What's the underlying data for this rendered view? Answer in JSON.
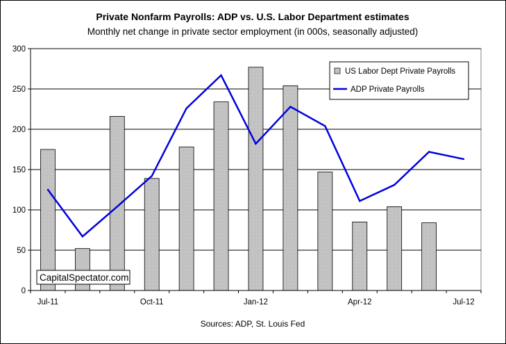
{
  "chart_data": {
    "type": "bar",
    "title": "Private Nonfarm Payrolls: ADP vs. U.S. Labor Department estimates",
    "subtitle": "Monthly net change in private sector employment (in 000s, seasonally adjusted)",
    "x_tick_labels": [
      "Jul-11",
      "Oct-11",
      "Jan-12",
      "Apr-12",
      "Jul-12"
    ],
    "ylim": [
      0,
      300
    ],
    "y_ticks": [
      0,
      50,
      100,
      150,
      200,
      250,
      300
    ],
    "grid": true,
    "legend_position": "top-right",
    "months": 13,
    "series": [
      {
        "name": "US Labor Dept Private Payrolls",
        "type": "bar",
        "values": [
          175,
          52,
          216,
          139,
          178,
          234,
          277,
          254,
          147,
          85,
          104,
          84,
          null
        ]
      },
      {
        "name": "ADP Private Payrolls",
        "type": "line",
        "color": "#0000dd",
        "values": [
          125,
          67,
          104,
          142,
          226,
          267,
          182,
          228,
          204,
          111,
          131,
          172,
          163
        ]
      }
    ],
    "source": "Sources: ADP, St. Louis Fed",
    "watermark": "CapitalSpectator.com"
  },
  "colors": {
    "bar_fill": "#c8c8c8",
    "line": "#0000dd",
    "plot_bg": "#ffffff"
  }
}
